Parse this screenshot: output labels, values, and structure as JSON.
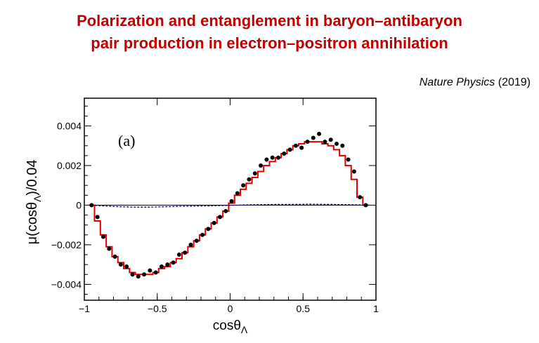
{
  "header": {
    "title_line1": "Polarization and entanglement in baryon–antibaryon",
    "title_line2": "pair production in electron–positron annihilation",
    "journal": "Nature Physics",
    "year": "(2019)"
  },
  "colors": {
    "title": "#c00000",
    "fit_curve": "#e00000",
    "data_points": "#000000",
    "background_check": "#00008b"
  },
  "chart_data": {
    "type": "scatter",
    "panel_label": "(a)",
    "xlabel": "cosθ",
    "xlabel_sub": "Λ",
    "ylabel_pre": "μ(cosθ",
    "ylabel_sub": "Λ",
    "ylabel_post": ")/0.04",
    "xlim": [
      -1,
      1
    ],
    "ylim": [
      -0.0048,
      0.0054
    ],
    "x_ticks": [
      -1,
      -0.5,
      0,
      0.5,
      1
    ],
    "x_tick_labels": [
      "−1",
      "−0.5",
      "0",
      "0.5",
      "1"
    ],
    "y_ticks": [
      -0.004,
      -0.002,
      0,
      0.002,
      0.004
    ],
    "y_tick_labels": [
      "−0.004",
      "−0.002",
      "0",
      "0.002",
      "0.004"
    ],
    "grid": false,
    "series": [
      {
        "kind": "points",
        "x": [
          -0.95,
          -0.91,
          -0.87,
          -0.83,
          -0.79,
          -0.75,
          -0.71,
          -0.67,
          -0.63,
          -0.59,
          -0.55,
          -0.51,
          -0.47,
          -0.43,
          -0.39,
          -0.35,
          -0.31,
          -0.27,
          -0.23,
          -0.19,
          -0.15,
          -0.11,
          -0.07,
          -0.03,
          0.01,
          0.05,
          0.09,
          0.13,
          0.17,
          0.21,
          0.25,
          0.29,
          0.33,
          0.37,
          0.41,
          0.45,
          0.49,
          0.53,
          0.57,
          0.61,
          0.65,
          0.69,
          0.73,
          0.77,
          0.81,
          0.85,
          0.89,
          0.93
        ],
        "y": [
          0.0,
          -0.0006,
          -0.0016,
          -0.0022,
          -0.0026,
          -0.003,
          -0.0031,
          -0.0035,
          -0.0036,
          -0.0035,
          -0.0033,
          -0.0034,
          -0.0031,
          -0.003,
          -0.0029,
          -0.0025,
          -0.0024,
          -0.002,
          -0.0018,
          -0.0015,
          -0.0012,
          -0.0009,
          -0.0006,
          -0.0003,
          0.0002,
          0.0006,
          0.001,
          0.0013,
          0.0016,
          0.002,
          0.0023,
          0.0024,
          0.0024,
          0.0026,
          0.0028,
          0.003,
          0.0029,
          0.0032,
          0.0034,
          0.0036,
          0.0032,
          0.0033,
          0.0031,
          0.003,
          0.0023,
          0.0017,
          0.0004,
          0.0
        ],
        "yerr": [
          0.0001,
          0.0001,
          0.0001,
          0.0001,
          0.0001,
          0.0001,
          0.0001,
          0.0001,
          0.0001,
          0.0001,
          0.0001,
          0.0001,
          0.0001,
          0.0001,
          0.0001,
          0.0001,
          0.0001,
          0.0001,
          0.0001,
          0.0001,
          0.0001,
          0.0001,
          0.0001,
          0.0001,
          0.0001,
          0.0001,
          0.0001,
          0.0001,
          0.0001,
          0.0001,
          0.0001,
          0.0001,
          0.0001,
          0.0001,
          0.0001,
          0.0001,
          0.0001,
          0.0001,
          0.0001,
          0.0001,
          0.0001,
          0.0001,
          0.0001,
          0.0001,
          0.0001,
          0.0001,
          0.0001,
          0.0001
        ]
      },
      {
        "kind": "step",
        "edges": [
          -0.97,
          -0.93,
          -0.89,
          -0.85,
          -0.81,
          -0.77,
          -0.73,
          -0.69,
          -0.65,
          -0.61,
          -0.57,
          -0.53,
          -0.49,
          -0.45,
          -0.41,
          -0.37,
          -0.33,
          -0.29,
          -0.25,
          -0.21,
          -0.17,
          -0.13,
          -0.09,
          -0.05,
          -0.01,
          0.03,
          0.07,
          0.11,
          0.15,
          0.19,
          0.23,
          0.27,
          0.31,
          0.35,
          0.39,
          0.43,
          0.47,
          0.51,
          0.55,
          0.59,
          0.63,
          0.67,
          0.71,
          0.75,
          0.79,
          0.83,
          0.87,
          0.91,
          0.95
        ],
        "y": [
          0.0,
          -0.0008,
          -0.0015,
          -0.0021,
          -0.0026,
          -0.0029,
          -0.0032,
          -0.0034,
          -0.0035,
          -0.0035,
          -0.0035,
          -0.0034,
          -0.0032,
          -0.0031,
          -0.0029,
          -0.0027,
          -0.0024,
          -0.0021,
          -0.0018,
          -0.0015,
          -0.0012,
          -0.0009,
          -0.0006,
          -0.0003,
          0.0001,
          0.0005,
          0.0008,
          0.0011,
          0.0014,
          0.0017,
          0.002,
          0.0022,
          0.0024,
          0.0026,
          0.0028,
          0.003,
          0.0031,
          0.0032,
          0.0032,
          0.0032,
          0.0031,
          0.003,
          0.0028,
          0.0025,
          0.002,
          0.0013,
          0.0004,
          0.0
        ]
      },
      {
        "kind": "baseline",
        "x": [
          -0.95,
          -0.85,
          -0.75,
          -0.65,
          -0.55,
          -0.45,
          -0.35,
          -0.25,
          -0.15,
          -0.05,
          0.05,
          0.15,
          0.25,
          0.35,
          0.45,
          0.55,
          0.65,
          0.75,
          0.85,
          0.95
        ],
        "y": [
          0.0,
          -5e-05,
          -8e-05,
          -0.0001,
          -0.0001,
          -8e-05,
          -6e-05,
          -5e-05,
          -4e-05,
          -2e-05,
          0.0,
          2e-05,
          3e-05,
          4e-05,
          4e-05,
          5e-05,
          4e-05,
          3e-05,
          2e-05,
          0.0
        ]
      }
    ]
  }
}
